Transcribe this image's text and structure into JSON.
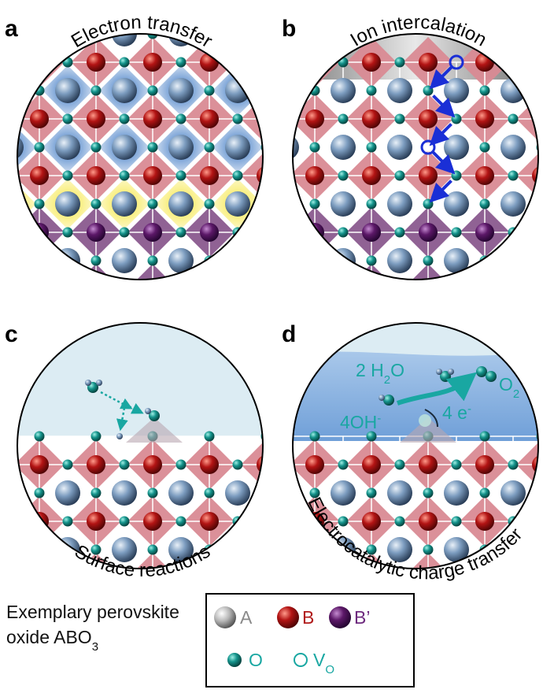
{
  "panels": {
    "a": {
      "letter": "a",
      "title": "Electron transfer"
    },
    "b": {
      "letter": "b",
      "title": "Ion intercalation"
    },
    "c": {
      "letter": "c",
      "title": "Surface reactions"
    },
    "d": {
      "letter": "d",
      "title": "Electrocatalytic charge transfer",
      "water": "2 H",
      "water_sub": "2",
      "water_tail": "O",
      "oxygen": "O",
      "oxygen_sub": "2",
      "hydroxide": "4OH",
      "hydroxide_sup": "-",
      "electrons": "4 e",
      "electrons_sup": "-"
    }
  },
  "legend": {
    "caption_line1": "Exemplary perovskite",
    "caption_line2": "oxide ABO",
    "caption_sub": "3",
    "a_label": "A",
    "b_label": "B",
    "bprime_label": "B’",
    "o_label": "O",
    "vo_label": "V",
    "vo_sub": "O"
  },
  "colors": {
    "a_site": "#6f8fb3",
    "b_site": "#b01818",
    "bprime_site": "#5a1a66",
    "o_site": "#1b9a93",
    "octahedron_b": "#d98a93",
    "octahedron_bprime": "#8a5a8e",
    "electron_blue": "#2f6fc0",
    "hole_yellow": "#f2e13a",
    "vacancy": "#1a2fd6",
    "electrolyte_light": "#dcecf3",
    "electrolyte_dark": "#7ea8d8",
    "text_accent": "#19a7a2"
  }
}
